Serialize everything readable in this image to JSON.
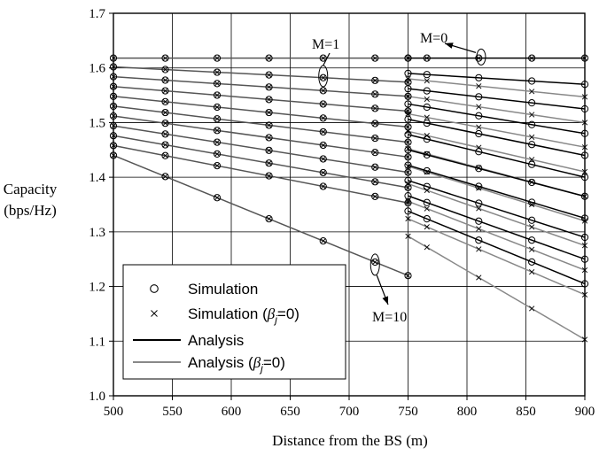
{
  "chart_data": {
    "type": "line",
    "xlabel": "Distance from the BS (m)",
    "ylabel_line1": "Capacity",
    "ylabel_line2": "(bps/Hz)",
    "xlim": [
      500,
      900
    ],
    "ylim": [
      1.0,
      1.7
    ],
    "x_ticks": [
      500,
      550,
      600,
      650,
      700,
      750,
      800,
      850,
      900
    ],
    "y_ticks": [
      1.0,
      1.1,
      1.2,
      1.3,
      1.4,
      1.5,
      1.6,
      1.7
    ],
    "x_tick_labels": [
      "500",
      "550",
      "600",
      "650",
      "700",
      "750",
      "800",
      "850",
      "900"
    ],
    "y_tick_labels": [
      "1.0",
      "1.1",
      "1.2",
      "1.3",
      "1.4",
      "1.5",
      "1.6",
      "1.7"
    ],
    "grid": true,
    "colors": {
      "analysis": "#000000",
      "analysis_beta0": "#888888"
    },
    "legend": {
      "placement": "bottom-left",
      "entries": [
        {
          "marker": "circle",
          "label": "Simulation"
        },
        {
          "marker": "cross",
          "label_main": "Simulation (",
          "label_beta": "β",
          "label_sub": "j",
          "label_tail": "=0)"
        },
        {
          "marker": "black-line",
          "label": "Analysis"
        },
        {
          "marker": "gray-line",
          "label_main": "Analysis (",
          "label_beta": "β",
          "label_sub": "j",
          "label_tail": "=0)"
        }
      ]
    },
    "annotations": [
      {
        "text": "M=0",
        "x": 812,
        "y": 1.62
      },
      {
        "text": "M=1",
        "x": 678,
        "y": 1.585
      },
      {
        "text": "M=10",
        "x": 722,
        "y": 1.24
      }
    ],
    "x_sim": [
      500,
      544,
      588,
      632,
      678,
      722,
      750,
      766,
      810,
      855,
      900
    ],
    "analysis_inner": [
      {
        "name": "M=0",
        "x": [
          500,
          750
        ],
        "y": [
          1.618,
          1.618
        ]
      },
      {
        "name": "M=1",
        "x": [
          500,
          750
        ],
        "y": [
          1.602,
          1.574
        ]
      },
      {
        "name": "M=2",
        "x": [
          500,
          750
        ],
        "y": [
          1.584,
          1.548
        ]
      },
      {
        "name": "M=3",
        "x": [
          500,
          750
        ],
        "y": [
          1.566,
          1.521
        ]
      },
      {
        "name": "M=4",
        "x": [
          500,
          750
        ],
        "y": [
          1.548,
          1.492
        ]
      },
      {
        "name": "M=5",
        "x": [
          500,
          750
        ],
        "y": [
          1.53,
          1.464
        ]
      },
      {
        "name": "M=6",
        "x": [
          500,
          750
        ],
        "y": [
          1.512,
          1.437
        ]
      },
      {
        "name": "M=7",
        "x": [
          500,
          750
        ],
        "y": [
          1.494,
          1.409
        ]
      },
      {
        "name": "M=8",
        "x": [
          500,
          750
        ],
        "y": [
          1.476,
          1.381
        ]
      },
      {
        "name": "M=9",
        "x": [
          500,
          750
        ],
        "y": [
          1.458,
          1.353
        ]
      },
      {
        "name": "M=10",
        "x": [
          500,
          750
        ],
        "y": [
          1.44,
          1.22
        ]
      }
    ],
    "analysis_outer": [
      {
        "name": "M=0",
        "x": [
          750,
          900
        ],
        "y": [
          1.618,
          1.618
        ]
      },
      {
        "name": "M=1",
        "x": [
          750,
          900
        ],
        "y": [
          1.59,
          1.57
        ]
      },
      {
        "name": "M=2",
        "x": [
          750,
          900
        ],
        "y": [
          1.562,
          1.525
        ]
      },
      {
        "name": "M=3",
        "x": [
          750,
          900
        ],
        "y": [
          1.534,
          1.48
        ]
      },
      {
        "name": "M=4",
        "x": [
          750,
          900
        ],
        "y": [
          1.506,
          1.44
        ]
      },
      {
        "name": "M=5",
        "x": [
          750,
          900
        ],
        "y": [
          1.478,
          1.4
        ]
      },
      {
        "name": "M=6",
        "x": [
          750,
          900
        ],
        "y": [
          1.45,
          1.365
        ]
      },
      {
        "name": "M=7",
        "x": [
          750,
          900
        ],
        "y": [
          1.422,
          1.325
        ]
      },
      {
        "name": "M=8",
        "x": [
          750,
          900
        ],
        "y": [
          1.394,
          1.29
        ]
      },
      {
        "name": "M=9",
        "x": [
          750,
          900
        ],
        "y": [
          1.366,
          1.25
        ]
      },
      {
        "name": "M=10",
        "x": [
          750,
          900
        ],
        "y": [
          1.338,
          1.205
        ]
      }
    ],
    "analysis_beta0_outer": [
      {
        "name": "M=1",
        "x": [
          750,
          900
        ],
        "y": [
          1.58,
          1.547
        ]
      },
      {
        "name": "M=2",
        "x": [
          750,
          900
        ],
        "y": [
          1.548,
          1.5
        ]
      },
      {
        "name": "M=3",
        "x": [
          750,
          900
        ],
        "y": [
          1.516,
          1.455
        ]
      },
      {
        "name": "M=4",
        "x": [
          750,
          900
        ],
        "y": [
          1.484,
          1.41
        ]
      },
      {
        "name": "M=5",
        "x": [
          750,
          900
        ],
        "y": [
          1.452,
          1.365
        ]
      },
      {
        "name": "M=6",
        "x": [
          750,
          900
        ],
        "y": [
          1.42,
          1.32
        ]
      },
      {
        "name": "M=7",
        "x": [
          750,
          900
        ],
        "y": [
          1.388,
          1.275
        ]
      },
      {
        "name": "M=8",
        "x": [
          750,
          900
        ],
        "y": [
          1.356,
          1.23
        ]
      },
      {
        "name": "M=9",
        "x": [
          750,
          900
        ],
        "y": [
          1.324,
          1.185
        ]
      },
      {
        "name": "M=10",
        "x": [
          750,
          900
        ],
        "y": [
          1.292,
          1.103
        ]
      }
    ]
  }
}
